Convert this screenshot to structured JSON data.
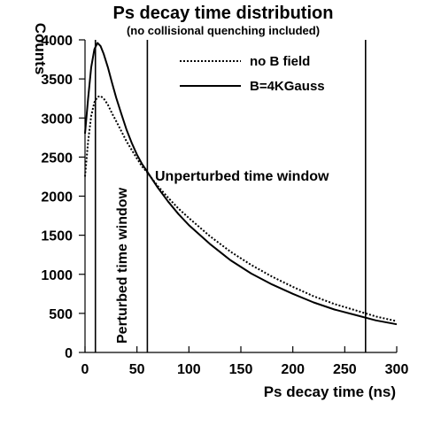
{
  "chart_data": {
    "type": "line",
    "title": "Ps decay time distribution",
    "subtitle": "(no collisional quenching included)",
    "xlabel": "Ps decay time (ns)",
    "ylabel": "Counts",
    "xlim": [
      0,
      300
    ],
    "ylim": [
      0,
      4000
    ],
    "xticks": [
      0,
      50,
      100,
      150,
      200,
      250,
      300
    ],
    "yticks": [
      0,
      500,
      1000,
      1500,
      2000,
      2500,
      3000,
      3500,
      4000
    ],
    "xtick_labels": [
      "0",
      "50",
      "100",
      "150",
      "200",
      "250",
      "300"
    ],
    "ytick_labels": [
      "0",
      "500",
      "1000",
      "1500",
      "2000",
      "2500",
      "3000",
      "3500",
      "4000"
    ],
    "grid": false,
    "legend_position": "top-right",
    "series": [
      {
        "name": "no B field",
        "style": "dotted",
        "x": [
          0,
          3,
          6,
          9,
          12,
          15,
          18,
          22,
          26,
          30,
          35,
          40,
          45,
          50,
          55,
          60,
          70,
          80,
          90,
          100,
          120,
          140,
          160,
          180,
          200,
          220,
          240,
          260,
          280,
          300
        ],
        "y": [
          2250,
          2700,
          3030,
          3200,
          3270,
          3280,
          3250,
          3170,
          3060,
          2960,
          2830,
          2700,
          2590,
          2480,
          2380,
          2300,
          2130,
          1980,
          1840,
          1720,
          1490,
          1290,
          1120,
          970,
          840,
          720,
          620,
          540,
          460,
          400
        ]
      },
      {
        "name": "B=4KGauss",
        "style": "solid",
        "x": [
          0,
          3,
          6,
          9,
          12,
          15,
          18,
          22,
          26,
          30,
          35,
          40,
          45,
          50,
          55,
          60,
          70,
          80,
          90,
          100,
          120,
          140,
          160,
          180,
          200,
          220,
          240,
          260,
          280,
          300
        ],
        "y": [
          2800,
          3250,
          3650,
          3880,
          3960,
          3920,
          3820,
          3650,
          3450,
          3260,
          3050,
          2850,
          2680,
          2530,
          2410,
          2310,
          2110,
          1930,
          1770,
          1630,
          1390,
          1180,
          1010,
          870,
          750,
          640,
          550,
          480,
          410,
          360
        ]
      }
    ],
    "vertical_lines": [
      10,
      60,
      270
    ],
    "annotations": [
      {
        "text": "Perturbed time window"
      },
      {
        "text": "Unperturbed time window"
      }
    ]
  }
}
